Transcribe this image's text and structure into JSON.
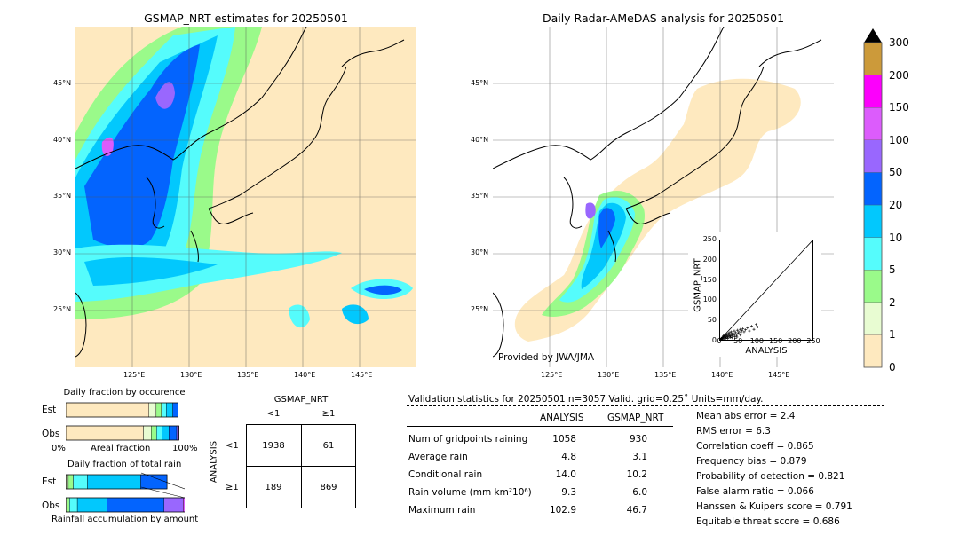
{
  "left_map": {
    "title": "GSMAP_NRT estimates for 20250501",
    "lat_labels": [
      "45°N",
      "40°N",
      "35°N",
      "30°N",
      "25°N"
    ],
    "lon_labels": [
      "125°E",
      "130°E",
      "135°E",
      "140°E",
      "145°E"
    ]
  },
  "right_map": {
    "title": "Daily Radar-AMeDAS analysis for 20250501",
    "lat_labels": [
      "45°N",
      "40°N",
      "35°N",
      "30°N",
      "25°N"
    ],
    "lon_labels": [
      "125°E",
      "130°E",
      "135°E",
      "140°E",
      "145°E"
    ],
    "credit": "Provided by JWA/JMA"
  },
  "colorbar": {
    "ticks": [
      "0",
      "1",
      "2",
      "5",
      "10",
      "20",
      "50",
      "100",
      "150",
      "200",
      "300"
    ],
    "colors": [
      "#fee9bf",
      "#e8fcd2",
      "#9afa8a",
      "#55fcfc",
      "#02c8fd",
      "#0364fe",
      "#9967fe",
      "#dc5cfc",
      "#fc00fc",
      "#cc9a3a"
    ],
    "extend_color": "#000000"
  },
  "scatter": {
    "xlabel": "ANALYSIS",
    "ylabel": "GSMAP_NRT",
    "xticks": [
      "0",
      "50",
      "100",
      "150",
      "200",
      "250"
    ],
    "yticks": [
      "0",
      "50",
      "100",
      "150",
      "200",
      "250"
    ]
  },
  "occurrence": {
    "title": "Daily fraction by occurence",
    "rows": [
      "Est",
      "Obs"
    ],
    "axis_left": "0%",
    "axis_mid": "Areal fraction",
    "axis_right": "100%"
  },
  "total_rain": {
    "title": "Daily fraction of total rain",
    "rows": [
      "Est",
      "Obs"
    ],
    "footer": "Rainfall accumulation by amount"
  },
  "contingency": {
    "title": "GSMAP_NRT",
    "col_labels": [
      "<1",
      "≥1"
    ],
    "row_labels": [
      "<1",
      "≥1"
    ],
    "ylabel": "ANALYSIS",
    "cells": [
      [
        "1938",
        "61"
      ],
      [
        "189",
        "869"
      ]
    ]
  },
  "validation": {
    "header": "Validation statistics for 20250501  n=3057 Valid. grid=0.25˚ Units=mm/day.",
    "col_analysis": "ANALYSIS",
    "col_gsmap": "GSMAP_NRT",
    "rows": [
      {
        "label": "Num of gridpoints raining",
        "analysis": "1058",
        "gsmap": "930"
      },
      {
        "label": "Average rain",
        "analysis": "4.8",
        "gsmap": "3.1"
      },
      {
        "label": "Conditional rain",
        "analysis": "14.0",
        "gsmap": "10.2"
      },
      {
        "label": "Rain volume (mm km²10⁶)",
        "analysis": "9.3",
        "gsmap": "6.0"
      },
      {
        "label": "Maximum rain",
        "analysis": "102.9",
        "gsmap": "46.7"
      }
    ],
    "scores": [
      "Mean abs error =    2.4",
      "RMS error =    6.3",
      "Correlation coeff =  0.865",
      "Frequency bias =  0.879",
      "Probability of detection =  0.821",
      "False alarm ratio =  0.066",
      "Hanssen & Kuipers score =  0.791",
      "Equitable threat score =  0.686"
    ]
  },
  "chart_data": [
    {
      "type": "heatmap",
      "title": "GSMAP_NRT estimates for 20250501",
      "xlabel": "",
      "ylabel": "",
      "x_ticks": [
        "125°E",
        "130°E",
        "135°E",
        "140°E",
        "145°E"
      ],
      "y_ticks": [
        "45°N",
        "40°N",
        "35°N",
        "30°N",
        "25°N"
      ],
      "xlim": [
        120,
        150
      ],
      "ylim": [
        20,
        50
      ],
      "grid": true
    },
    {
      "type": "heatmap",
      "title": "Daily Radar-AMeDAS analysis for 20250501",
      "xlabel": "",
      "ylabel": "",
      "x_ticks": [
        "125°E",
        "130°E",
        "135°E",
        "140°E",
        "145°E"
      ],
      "y_ticks": [
        "45°N",
        "40°N",
        "35°N",
        "30°N",
        "25°N"
      ],
      "xlim": [
        120,
        150
      ],
      "ylim": [
        20,
        50
      ],
      "grid": true
    },
    {
      "type": "scatter",
      "xlabel": "ANALYSIS",
      "ylabel": "GSMAP_NRT",
      "xlim": [
        0,
        250
      ],
      "ylim": [
        0,
        250
      ],
      "x": [
        2,
        4,
        5,
        6,
        8,
        9,
        10,
        11,
        12,
        13,
        14,
        15,
        16,
        17,
        18,
        19,
        20,
        21,
        22,
        24,
        25,
        26,
        27,
        28,
        30,
        31,
        32,
        33,
        35,
        36,
        38,
        40,
        42,
        44,
        46,
        48,
        50,
        52,
        55,
        58,
        60,
        63,
        66,
        70,
        75,
        80,
        86,
        92,
        98,
        103,
        3,
        7,
        12,
        18,
        23,
        29,
        34,
        41,
        47,
        56
      ],
      "y": [
        3,
        2,
        6,
        4,
        8,
        5,
        9,
        12,
        7,
        10,
        14,
        6,
        11,
        9,
        15,
        8,
        12,
        16,
        10,
        14,
        18,
        9,
        13,
        20,
        12,
        17,
        22,
        11,
        15,
        19,
        14,
        24,
        16,
        20,
        13,
        26,
        18,
        22,
        28,
        20,
        25,
        30,
        22,
        27,
        32,
        24,
        36,
        28,
        40,
        34,
        1,
        2,
        4,
        6,
        5,
        8,
        7,
        10,
        9,
        14
      ],
      "diagonal": true
    },
    {
      "type": "bar",
      "title": "Daily fraction by occurence",
      "orientation": "horizontal-stacked",
      "categories": [
        "Est",
        "Obs"
      ],
      "xlim": [
        0,
        100
      ],
      "series": [
        {
          "values": [
            70.0,
            65.3
          ]
        },
        {
          "values": [
            6.0,
            6.5
          ]
        },
        {
          "values": [
            4.5,
            4.5
          ]
        },
        {
          "values": [
            4.0,
            4.5
          ]
        },
        {
          "values": [
            5.5,
            6.0
          ]
        },
        {
          "values": [
            4.5,
            6.5
          ]
        },
        {
          "values": [
            0,
            1.5
          ]
        },
        {
          "values": [
            0,
            0.4
          ]
        },
        {
          "values": [
            0,
            0
          ]
        }
      ]
    },
    {
      "type": "bar",
      "title": "Daily fraction of total rain",
      "orientation": "horizontal-stacked",
      "categories": [
        "Est",
        "Obs"
      ],
      "series": [
        {
          "values": [
            0.3,
            0.1
          ]
        },
        {
          "values": [
            1.5,
            0.6
          ]
        },
        {
          "values": [
            3.5,
            2.0
          ]
        },
        {
          "values": [
            10.0,
            5.5
          ]
        },
        {
          "values": [
            37.5,
            21.0
          ]
        },
        {
          "values": [
            18.5,
            40.0
          ]
        },
        {
          "values": [
            0,
            13.5
          ]
        },
        {
          "values": [
            0,
            2.0
          ]
        }
      ],
      "footer": "Rainfall accumulation by amount"
    }
  ]
}
